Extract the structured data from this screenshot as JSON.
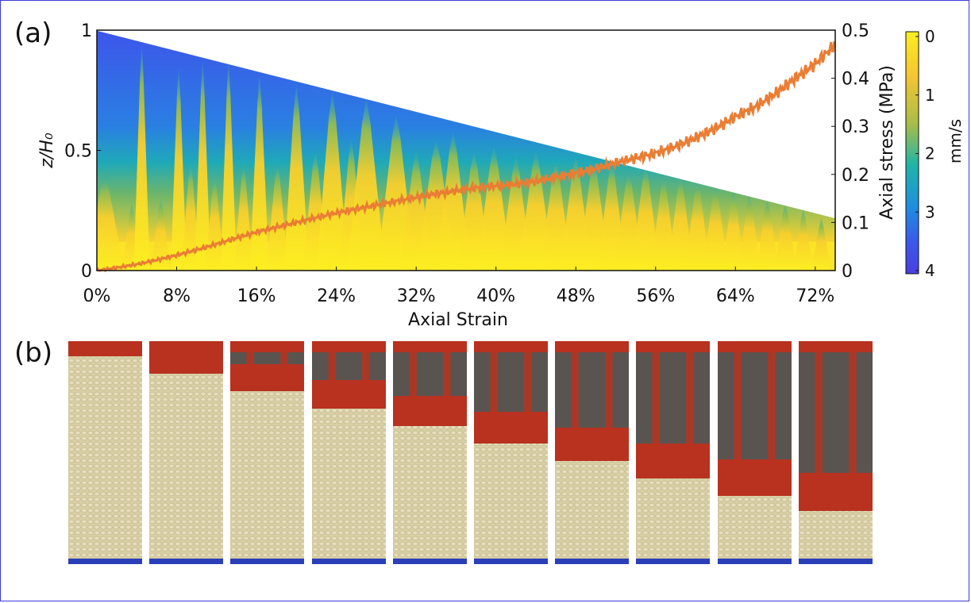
{
  "panels": {
    "a": "(a)",
    "b": "(b)"
  },
  "colors": {
    "stress_line": "#ea7d34",
    "colormap": [
      "#fcee21",
      "#f7c531",
      "#a9bd47",
      "#1fb5a6",
      "#1f8fe0",
      "#3a59ea",
      "#4a3fe0"
    ],
    "piston": "#b8321f",
    "grain": "#d9cfa5",
    "base": "#2a3fb8"
  },
  "chart_data": {
    "type": "heatmap",
    "xlabel": "Axial Strain",
    "ylabel_left": "z/H₀",
    "ylabel_right": "Axial stress (MPa)",
    "colorbar_label": "mm/s",
    "xlim": [
      0,
      0.74
    ],
    "ylim_left": [
      0,
      1
    ],
    "ylim_right": [
      0,
      0.5
    ],
    "colorbar_range": [
      0,
      4
    ],
    "colorbar_reversed": true,
    "x_ticks": [
      "0%",
      "8%",
      "16%",
      "24%",
      "32%",
      "40%",
      "48%",
      "56%",
      "64%",
      "72%"
    ],
    "x_tick_values": [
      0,
      0.08,
      0.16,
      0.24,
      0.32,
      0.4,
      0.48,
      0.56,
      0.64,
      0.72
    ],
    "y_left_ticks": [
      "0",
      "0.5",
      "1"
    ],
    "y_left_tick_values": [
      0,
      0.5,
      1
    ],
    "y_right_ticks": [
      "0",
      "0.1",
      "0.2",
      "0.3",
      "0.4",
      "0.5"
    ],
    "y_right_tick_values": [
      0,
      0.1,
      0.2,
      0.3,
      0.4,
      0.5
    ],
    "colorbar_ticks": [
      "0",
      "1",
      "2",
      "3",
      "4"
    ],
    "colorbar_tick_values": [
      0,
      1,
      2,
      3,
      4
    ],
    "upper_boundary": {
      "x": [
        0,
        0.74
      ],
      "z": [
        1,
        0.22
      ]
    },
    "stress_series": {
      "x": [
        0,
        0.02,
        0.04,
        0.06,
        0.08,
        0.1,
        0.12,
        0.14,
        0.16,
        0.18,
        0.2,
        0.22,
        0.24,
        0.26,
        0.28,
        0.3,
        0.32,
        0.34,
        0.36,
        0.38,
        0.4,
        0.42,
        0.44,
        0.46,
        0.48,
        0.5,
        0.52,
        0.54,
        0.56,
        0.58,
        0.6,
        0.62,
        0.64,
        0.66,
        0.68,
        0.7,
        0.72,
        0.74
      ],
      "y": [
        0.0,
        0.006,
        0.013,
        0.022,
        0.032,
        0.043,
        0.055,
        0.068,
        0.08,
        0.09,
        0.1,
        0.11,
        0.12,
        0.128,
        0.136,
        0.144,
        0.152,
        0.16,
        0.166,
        0.172,
        0.176,
        0.18,
        0.186,
        0.194,
        0.202,
        0.212,
        0.224,
        0.234,
        0.244,
        0.258,
        0.276,
        0.296,
        0.32,
        0.34,
        0.368,
        0.4,
        0.43,
        0.47
      ]
    },
    "velocity_bursts": {
      "x": [
        0.008,
        0.035,
        0.045,
        0.064,
        0.082,
        0.094,
        0.106,
        0.118,
        0.132,
        0.147,
        0.163,
        0.181,
        0.2,
        0.219,
        0.236,
        0.255,
        0.27,
        0.3,
        0.32,
        0.34,
        0.357,
        0.378,
        0.398,
        0.42,
        0.44,
        0.46,
        0.48,
        0.498,
        0.516,
        0.533,
        0.55,
        0.568,
        0.585,
        0.602,
        0.62,
        0.638,
        0.654,
        0.672,
        0.69,
        0.708,
        0.726
      ],
      "height": [
        0.4,
        0.28,
        0.95,
        0.3,
        0.85,
        0.45,
        0.88,
        0.4,
        0.88,
        0.45,
        0.82,
        0.45,
        0.78,
        0.5,
        0.75,
        0.55,
        0.72,
        0.65,
        0.5,
        0.55,
        0.58,
        0.5,
        0.52,
        0.48,
        0.5,
        0.46,
        0.48,
        0.46,
        0.46,
        0.42,
        0.44,
        0.4,
        0.4,
        0.38,
        0.36,
        0.34,
        0.32,
        0.3,
        0.28,
        0.26,
        0.22
      ],
      "width": [
        0.012,
        0.006,
        0.005,
        0.006,
        0.005,
        0.006,
        0.005,
        0.006,
        0.005,
        0.006,
        0.006,
        0.007,
        0.008,
        0.008,
        0.01,
        0.008,
        0.012,
        0.012,
        0.01,
        0.012,
        0.011,
        0.01,
        0.011,
        0.01,
        0.011,
        0.01,
        0.01,
        0.01,
        0.009,
        0.009,
        0.009,
        0.008,
        0.008,
        0.008,
        0.008,
        0.007,
        0.007,
        0.007,
        0.007,
        0.006,
        0.006
      ]
    }
  },
  "photos": {
    "count": 10,
    "column_fill_fraction": [
      0.93,
      0.85,
      0.77,
      0.69,
      0.61,
      0.53,
      0.45,
      0.37,
      0.29,
      0.22
    ]
  }
}
